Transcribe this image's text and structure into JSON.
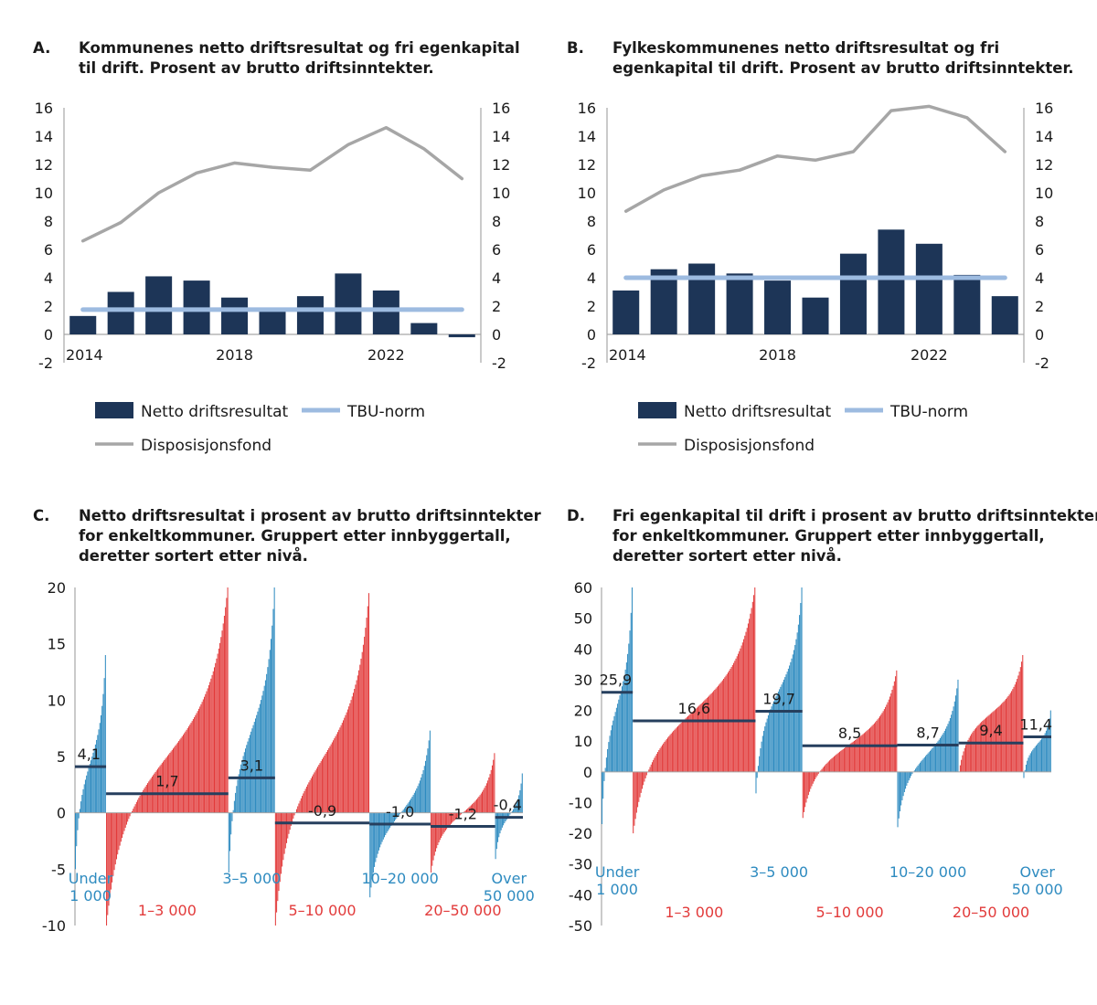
{
  "colors": {
    "netto": "#1d3557",
    "tbu": "#9dbbe0",
    "disp": "#a6a6a6",
    "blue": "#2e8bc0",
    "red": "#e23b3b",
    "avg": "#263f5e",
    "axis": "#a6a6a6"
  },
  "chart_data": [
    {
      "type": "bar",
      "id": "A",
      "letter": "A.",
      "title_lines": [
        "Kommunenes netto driftsresultat og fri egenkapital",
        "til drift. Prosent av brutto driftsinntekter."
      ],
      "years": [
        2014,
        2015,
        2016,
        2017,
        2018,
        2019,
        2020,
        2021,
        2022,
        2023,
        2024
      ],
      "x_tick_labels": [
        "2014",
        "2018",
        "2022"
      ],
      "y_ticks": [
        "16",
        "14",
        "12",
        "10",
        "8",
        "6",
        "4",
        "2",
        "0",
        "-2"
      ],
      "ylim": [
        -2,
        16
      ],
      "series": [
        {
          "name": "Netto driftsresultat",
          "kind": "bar",
          "values": [
            1.3,
            3.0,
            4.1,
            3.8,
            2.6,
            1.8,
            2.7,
            4.3,
            3.1,
            0.8,
            -0.2
          ]
        },
        {
          "name": "TBU-norm",
          "kind": "line",
          "values": [
            1.75,
            1.75,
            1.75,
            1.75,
            1.75,
            1.75,
            1.75,
            1.75,
            1.75,
            1.75,
            1.75
          ]
        },
        {
          "name": "Disposisjonsfond",
          "kind": "line",
          "values": [
            6.6,
            7.9,
            10.0,
            11.4,
            12.1,
            11.8,
            11.6,
            13.4,
            14.6,
            13.1,
            11.0
          ]
        }
      ]
    },
    {
      "type": "bar",
      "id": "B",
      "letter": "B.",
      "title_lines": [
        "Fylkeskommunenes netto driftsresultat og fri",
        "egenkapital til drift. Prosent av brutto driftsinntekter."
      ],
      "years": [
        2014,
        2015,
        2016,
        2017,
        2018,
        2019,
        2020,
        2021,
        2022,
        2023,
        2024
      ],
      "x_tick_labels": [
        "2014",
        "2018",
        "2022"
      ],
      "y_ticks": [
        "16",
        "14",
        "12",
        "10",
        "8",
        "6",
        "4",
        "2",
        "0",
        "-2"
      ],
      "ylim": [
        -2,
        16
      ],
      "series": [
        {
          "name": "Netto driftsresultat",
          "kind": "bar",
          "values": [
            3.1,
            4.6,
            5.0,
            4.3,
            3.8,
            2.6,
            5.7,
            7.4,
            6.4,
            4.2,
            2.7
          ]
        },
        {
          "name": "TBU-norm",
          "kind": "line",
          "values": [
            4.0,
            4.0,
            4.0,
            4.0,
            4.0,
            4.0,
            4.0,
            4.0,
            4.0,
            4.0,
            4.0
          ]
        },
        {
          "name": "Disposisjonsfond",
          "kind": "line",
          "values": [
            8.7,
            10.2,
            11.2,
            11.6,
            12.6,
            12.3,
            12.9,
            15.8,
            16.1,
            15.3,
            12.9
          ]
        }
      ]
    },
    {
      "type": "bar",
      "id": "C",
      "letter": "C.",
      "title_lines": [
        "Netto driftsresultat i prosent av brutto driftsinntekter",
        "for enkeltkommuner. Gruppert etter innbyggertall,",
        "deretter sortert etter nivå."
      ],
      "y_ticks": [
        "20",
        "15",
        "10",
        "5",
        "0",
        "-5",
        "-10"
      ],
      "ylim": [
        -10,
        20
      ],
      "groups": [
        {
          "label_lines": [
            "Under",
            "1 000"
          ],
          "color": "blue",
          "row": 0,
          "count": 28,
          "min": -5.0,
          "max": 14.0,
          "average": 4.1,
          "average_label": "4,1"
        },
        {
          "label_lines": [
            "1–3 000"
          ],
          "color": "red",
          "row": 1,
          "count": 110,
          "min": -10.0,
          "max": 20.0,
          "average": 1.7,
          "average_label": "1,7"
        },
        {
          "label_lines": [
            "3–5 000"
          ],
          "color": "blue",
          "row": 0,
          "count": 42,
          "min": -5.3,
          "max": 20.0,
          "average": 3.1,
          "average_label": "3,1"
        },
        {
          "label_lines": [
            "5–10 000"
          ],
          "color": "red",
          "row": 1,
          "count": 85,
          "min": -10.0,
          "max": 19.5,
          "average": -0.9,
          "average_label": "-0,9"
        },
        {
          "label_lines": [
            "10–20 000"
          ],
          "color": "blue",
          "row": 0,
          "count": 55,
          "min": -7.5,
          "max": 7.3,
          "average": -1.0,
          "average_label": "-1,0"
        },
        {
          "label_lines": [
            "20–50 000"
          ],
          "color": "red",
          "row": 1,
          "count": 58,
          "min": -5.3,
          "max": 5.3,
          "average": -1.2,
          "average_label": "-1,2"
        },
        {
          "label_lines": [
            "Over",
            "50 000"
          ],
          "color": "blue",
          "row": 0,
          "count": 25,
          "min": -4.1,
          "max": 3.5,
          "average": -0.4,
          "average_label": "-0,4"
        }
      ]
    },
    {
      "type": "bar",
      "id": "D",
      "letter": "D.",
      "title_lines": [
        "Fri egenkapital til drift i prosent av brutto driftsinntekter",
        "for enkeltkommuner. Gruppert etter innbyggertall,",
        "deretter sortert etter nivå."
      ],
      "y_ticks": [
        "60",
        "50",
        "40",
        "30",
        "20",
        "10",
        "0",
        "-10",
        "-20",
        "-30",
        "-40",
        "-50"
      ],
      "ylim": [
        -50,
        60
      ],
      "groups": [
        {
          "label_lines": [
            "Under",
            "1 000"
          ],
          "color": "blue",
          "row": 0,
          "count": 28,
          "min": -17.0,
          "max": 60.0,
          "average": 25.9,
          "average_label": "25,9"
        },
        {
          "label_lines": [
            "1–3 000"
          ],
          "color": "red",
          "row": 1,
          "count": 110,
          "min": -20.0,
          "max": 60.0,
          "average": 16.6,
          "average_label": "16,6"
        },
        {
          "label_lines": [
            "3–5 000"
          ],
          "color": "blue",
          "row": 0,
          "count": 42,
          "min": -7.0,
          "max": 60.0,
          "average": 19.7,
          "average_label": "19,7"
        },
        {
          "label_lines": [
            "5–10 000"
          ],
          "color": "red",
          "row": 1,
          "count": 85,
          "min": -15.0,
          "max": 33.0,
          "average": 8.5,
          "average_label": "8,5"
        },
        {
          "label_lines": [
            "10–20 000"
          ],
          "color": "blue",
          "row": 0,
          "count": 55,
          "min": -18.0,
          "max": 30.0,
          "average": 8.7,
          "average_label": "8,7"
        },
        {
          "label_lines": [
            "20–50 000"
          ],
          "color": "red",
          "row": 1,
          "count": 58,
          "min": 0.0,
          "max": 38.0,
          "average": 9.4,
          "average_label": "9,4"
        },
        {
          "label_lines": [
            "Over",
            "50 000"
          ],
          "color": "blue",
          "row": 0,
          "count": 25,
          "min": -2.0,
          "max": 20.0,
          "average": 11.4,
          "average_label": "11,4"
        }
      ]
    }
  ]
}
